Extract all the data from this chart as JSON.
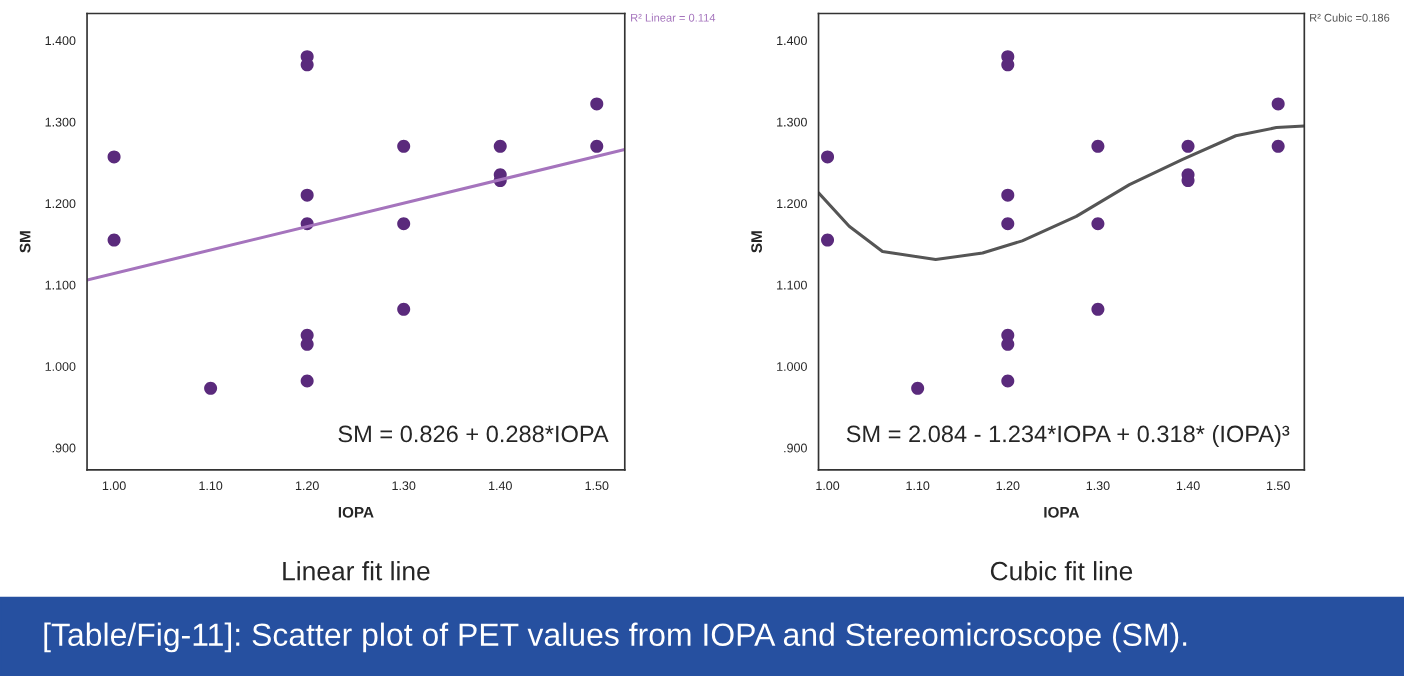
{
  "chart_data": [
    {
      "type": "scatter",
      "title": "Linear fit line",
      "xlabel": "IOPA",
      "ylabel": "SM",
      "xlim": [
        0.972,
        1.529
      ],
      "ylim": [
        0.873,
        1.433
      ],
      "xticks": [
        {
          "value": 1.0,
          "label": "1.00"
        },
        {
          "value": 1.1,
          "label": "1.10"
        },
        {
          "value": 1.2,
          "label": "1.20"
        },
        {
          "value": 1.3,
          "label": "1.30"
        },
        {
          "value": 1.4,
          "label": "1.40"
        },
        {
          "value": 1.5,
          "label": "1.50"
        }
      ],
      "yticks": [
        {
          "value": 0.9,
          "label": ".900"
        },
        {
          "value": 1.0,
          "label": "1.000"
        },
        {
          "value": 1.1,
          "label": "1.100"
        },
        {
          "value": 1.2,
          "label": "1.200"
        },
        {
          "value": 1.3,
          "label": "1.300"
        },
        {
          "value": 1.4,
          "label": "1.400"
        }
      ],
      "grid": false,
      "legend": false,
      "series": [
        {
          "marker": "circle",
          "color": "#5a2a7c",
          "x": [
            1.0,
            1.0,
            1.1,
            1.2,
            1.2,
            1.2,
            1.2,
            1.2,
            1.2,
            1.2,
            1.3,
            1.3,
            1.3,
            1.4,
            1.4,
            1.4,
            1.5,
            1.5
          ],
          "values": [
            1.257,
            1.155,
            0.973,
            1.38,
            1.37,
            1.21,
            1.175,
            1.038,
            1.027,
            0.982,
            1.27,
            1.175,
            1.07,
            1.27,
            1.235,
            1.228,
            1.322,
            1.27
          ]
        },
        {
          "type": "line",
          "color": "#a574bd",
          "x": [
            0.972,
            1.529
          ],
          "values": [
            1.106,
            1.266
          ]
        }
      ],
      "annotations": [
        "R² Linear = 0.114",
        "SM = 0.826 + 0.288*IOPA",
        "[Table/Fig-11]: Scatter plot of PET values from IOPA and Stereomicroscope (SM)."
      ]
    },
    {
      "type": "scatter",
      "title": "Cubic fit line",
      "xlabel": "IOPA",
      "ylabel": "SM",
      "xlim": [
        0.99,
        1.529
      ],
      "ylim": [
        0.873,
        1.433
      ],
      "xticks": [
        {
          "value": 1.0,
          "label": "1.00"
        },
        {
          "value": 1.1,
          "label": "1.10"
        },
        {
          "value": 1.2,
          "label": "1.20"
        },
        {
          "value": 1.3,
          "label": "1.30"
        },
        {
          "value": 1.4,
          "label": "1.40"
        },
        {
          "value": 1.5,
          "label": "1.50"
        }
      ],
      "yticks": [
        {
          "value": 0.9,
          "label": ".900"
        },
        {
          "value": 1.0,
          "label": "1.000"
        },
        {
          "value": 1.1,
          "label": "1.100"
        },
        {
          "value": 1.2,
          "label": "1.200"
        },
        {
          "value": 1.3,
          "label": "1.300"
        },
        {
          "value": 1.4,
          "label": "1.400"
        }
      ],
      "grid": false,
      "legend": false,
      "series": [
        {
          "marker": "circle",
          "color": "#5a2a7c",
          "x": [
            1.0,
            1.0,
            1.1,
            1.2,
            1.2,
            1.2,
            1.2,
            1.2,
            1.2,
            1.2,
            1.3,
            1.3,
            1.3,
            1.4,
            1.4,
            1.4,
            1.5,
            1.5
          ],
          "values": [
            1.257,
            1.155,
            0.973,
            1.38,
            1.37,
            1.21,
            1.175,
            1.038,
            1.027,
            0.982,
            1.27,
            1.175,
            1.07,
            1.27,
            1.235,
            1.228,
            1.322,
            1.27
          ]
        },
        {
          "type": "line",
          "color": "#555555",
          "x": [
            0.99,
            1.024,
            1.061,
            1.12,
            1.172,
            1.216,
            1.276,
            1.335,
            1.394,
            1.453,
            1.498,
            1.529
          ],
          "values": [
            1.213,
            1.172,
            1.141,
            1.131,
            1.139,
            1.154,
            1.184,
            1.223,
            1.254,
            1.283,
            1.293,
            1.295
          ]
        }
      ],
      "annotations": [
        "R² Cubic =0.186",
        "SM = 2.084 - 1.234*IOPA + 0.318* (IOPA)³"
      ]
    }
  ]
}
